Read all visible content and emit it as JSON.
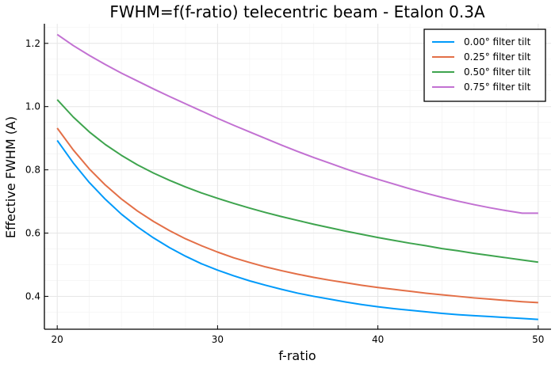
{
  "chart_data": {
    "type": "line",
    "title": "FWHM=f(f-ratio) telecentric beam - Etalon 0.3A",
    "xlabel": "f-ratio",
    "ylabel": "Effective FWHM (A)",
    "xlim": [
      19.2,
      50.8
    ],
    "ylim": [
      0.296,
      1.262
    ],
    "xticks": [
      20,
      30,
      40,
      50
    ],
    "yticks": [
      0.4,
      0.6,
      0.8,
      1.0,
      1.2
    ],
    "xtick_labels": [
      "20",
      "30",
      "40",
      "50"
    ],
    "ytick_labels": [
      "0.4",
      "0.6",
      "0.8",
      "1.0",
      "1.2"
    ],
    "grid": true,
    "legend_position": "top-right",
    "x": [
      20,
      21,
      22,
      23,
      24,
      25,
      26,
      27,
      28,
      29,
      30,
      31,
      32,
      33,
      34,
      35,
      36,
      37,
      38,
      39,
      40,
      41,
      42,
      43,
      44,
      45,
      46,
      47,
      48,
      49,
      50
    ],
    "series": [
      {
        "name": "0.00° filter tilt",
        "color": "#009AFA",
        "values": [
          0.893,
          0.822,
          0.76,
          0.707,
          0.66,
          0.62,
          0.585,
          0.554,
          0.527,
          0.503,
          0.483,
          0.465,
          0.449,
          0.435,
          0.422,
          0.41,
          0.4,
          0.391,
          0.382,
          0.374,
          0.367,
          0.361,
          0.356,
          0.351,
          0.346,
          0.342,
          0.339,
          0.336,
          0.333,
          0.33,
          0.327
        ]
      },
      {
        "name": "0.25° filter tilt",
        "color": "#E36F47",
        "values": [
          0.932,
          0.863,
          0.803,
          0.752,
          0.708,
          0.67,
          0.637,
          0.608,
          0.582,
          0.56,
          0.54,
          0.522,
          0.507,
          0.493,
          0.481,
          0.47,
          0.46,
          0.451,
          0.443,
          0.435,
          0.428,
          0.422,
          0.416,
          0.41,
          0.405,
          0.4,
          0.395,
          0.391,
          0.387,
          0.383,
          0.38
        ]
      },
      {
        "name": "0.50° filter tilt",
        "color": "#3EA44E",
        "values": [
          1.022,
          0.967,
          0.92,
          0.88,
          0.846,
          0.816,
          0.79,
          0.767,
          0.746,
          0.727,
          0.71,
          0.694,
          0.679,
          0.665,
          0.652,
          0.64,
          0.628,
          0.617,
          0.606,
          0.596,
          0.586,
          0.577,
          0.568,
          0.56,
          0.551,
          0.544,
          0.536,
          0.529,
          0.522,
          0.515,
          0.508
        ]
      },
      {
        "name": "0.75° filter tilt",
        "color": "#C271D2",
        "values": [
          1.228,
          1.193,
          1.162,
          1.133,
          1.106,
          1.081,
          1.056,
          1.032,
          1.009,
          0.986,
          0.963,
          0.941,
          0.92,
          0.899,
          0.878,
          0.858,
          0.839,
          0.821,
          0.803,
          0.786,
          0.77,
          0.755,
          0.74,
          0.726,
          0.713,
          0.701,
          0.69,
          0.68,
          0.671,
          0.663,
          0.663
        ]
      }
    ]
  }
}
